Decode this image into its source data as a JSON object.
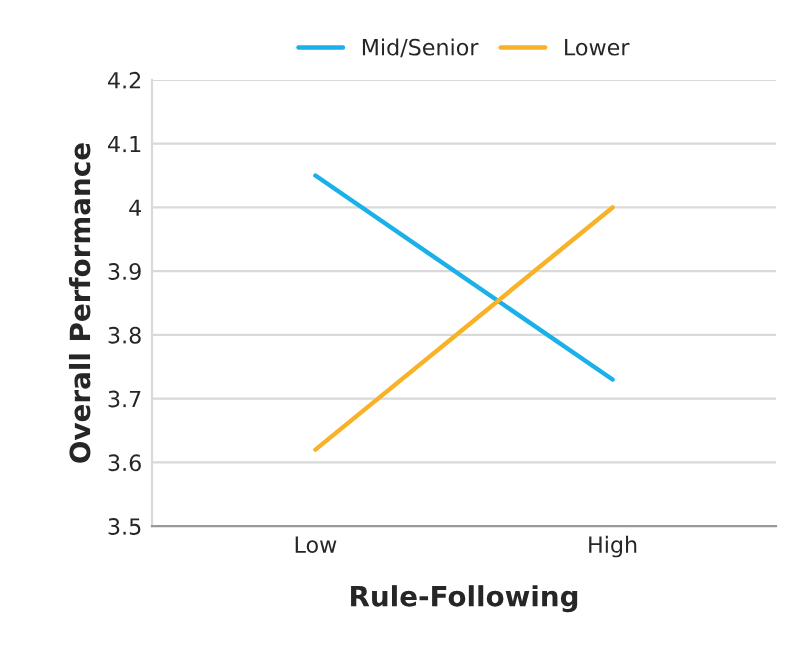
{
  "chart_data": {
    "type": "line",
    "xlabel": "Rule-Following",
    "ylabel": "Overall Performance",
    "categories": [
      "Low",
      "High"
    ],
    "series": [
      {
        "name": "Mid/Senior",
        "color": "#1ab0e8",
        "values": [
          4.05,
          3.73
        ]
      },
      {
        "name": "Lower",
        "color": "#f9b127",
        "values": [
          3.62,
          4.0
        ]
      }
    ],
    "ylim": [
      3.5,
      4.2
    ],
    "yticks": [
      3.5,
      3.6,
      3.7,
      3.8,
      3.9,
      4,
      4.1,
      4.2
    ],
    "grid": "y",
    "legend": "top",
    "marker": "none",
    "line_style": "solid"
  }
}
